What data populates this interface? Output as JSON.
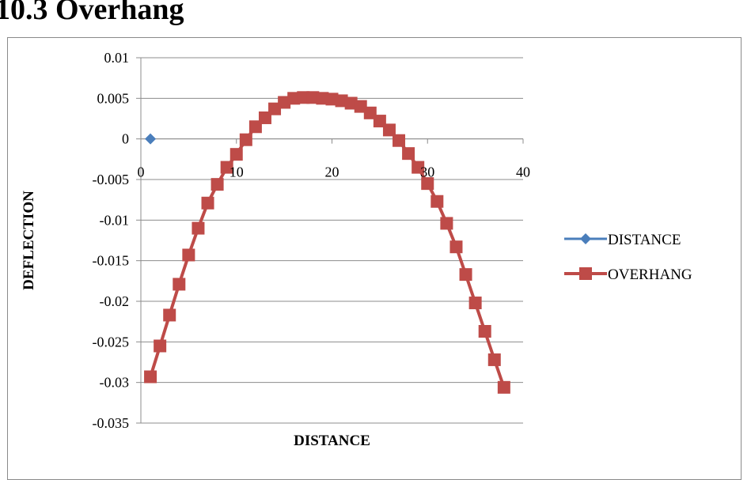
{
  "heading": "10.3 Overhang",
  "chart_data": {
    "type": "scatter",
    "title": "",
    "xlabel": "DISTANCE",
    "ylabel": "DEFLECTION",
    "xlim": [
      0,
      40
    ],
    "ylim": [
      -0.035,
      0.01
    ],
    "x_ticks": [
      0,
      10,
      20,
      30,
      40
    ],
    "y_ticks": [
      0.01,
      0.005,
      0,
      -0.005,
      -0.01,
      -0.015,
      -0.02,
      -0.025,
      -0.03,
      -0.035
    ],
    "x_tick_labels": [
      "0",
      "10",
      "20",
      "30",
      "40"
    ],
    "y_tick_labels": [
      "0.01",
      "0.005",
      "0",
      "-0.005",
      "-0.01",
      "-0.015",
      "-0.02",
      "-0.025",
      "-0.03",
      "-0.035"
    ],
    "grid": "horizontal",
    "legend_position": "right",
    "series": [
      {
        "name": "DISTANCE",
        "color": "#4a7ebb",
        "marker": "diamond",
        "x": [
          1
        ],
        "y": [
          0
        ]
      },
      {
        "name": "OVERHANG",
        "color": "#be4b48",
        "marker": "square",
        "x": [
          1,
          2,
          3,
          4,
          5,
          6,
          7,
          8,
          9,
          10,
          11,
          12,
          13,
          14,
          15,
          16,
          17,
          18,
          19,
          20,
          21,
          22,
          23,
          24,
          25,
          26,
          27,
          28,
          29,
          30,
          31,
          32,
          33,
          34,
          35,
          36,
          37,
          38
        ],
        "y": [
          -0.0293,
          -0.0255,
          -0.0217,
          -0.0179,
          -0.0143,
          -0.011,
          -0.0079,
          -0.0056,
          -0.0035,
          -0.0019,
          -0.0001,
          0.0015,
          0.0026,
          0.0037,
          0.0045,
          0.005,
          0.0051,
          0.0051,
          0.005,
          0.0049,
          0.0047,
          0.0044,
          0.004,
          0.0032,
          0.0022,
          0.0011,
          -0.0002,
          -0.0018,
          -0.0035,
          -0.0055,
          -0.0077,
          -0.0104,
          -0.0133,
          -0.0167,
          -0.0202,
          -0.0237,
          -0.0272,
          -0.0306
        ]
      }
    ]
  }
}
